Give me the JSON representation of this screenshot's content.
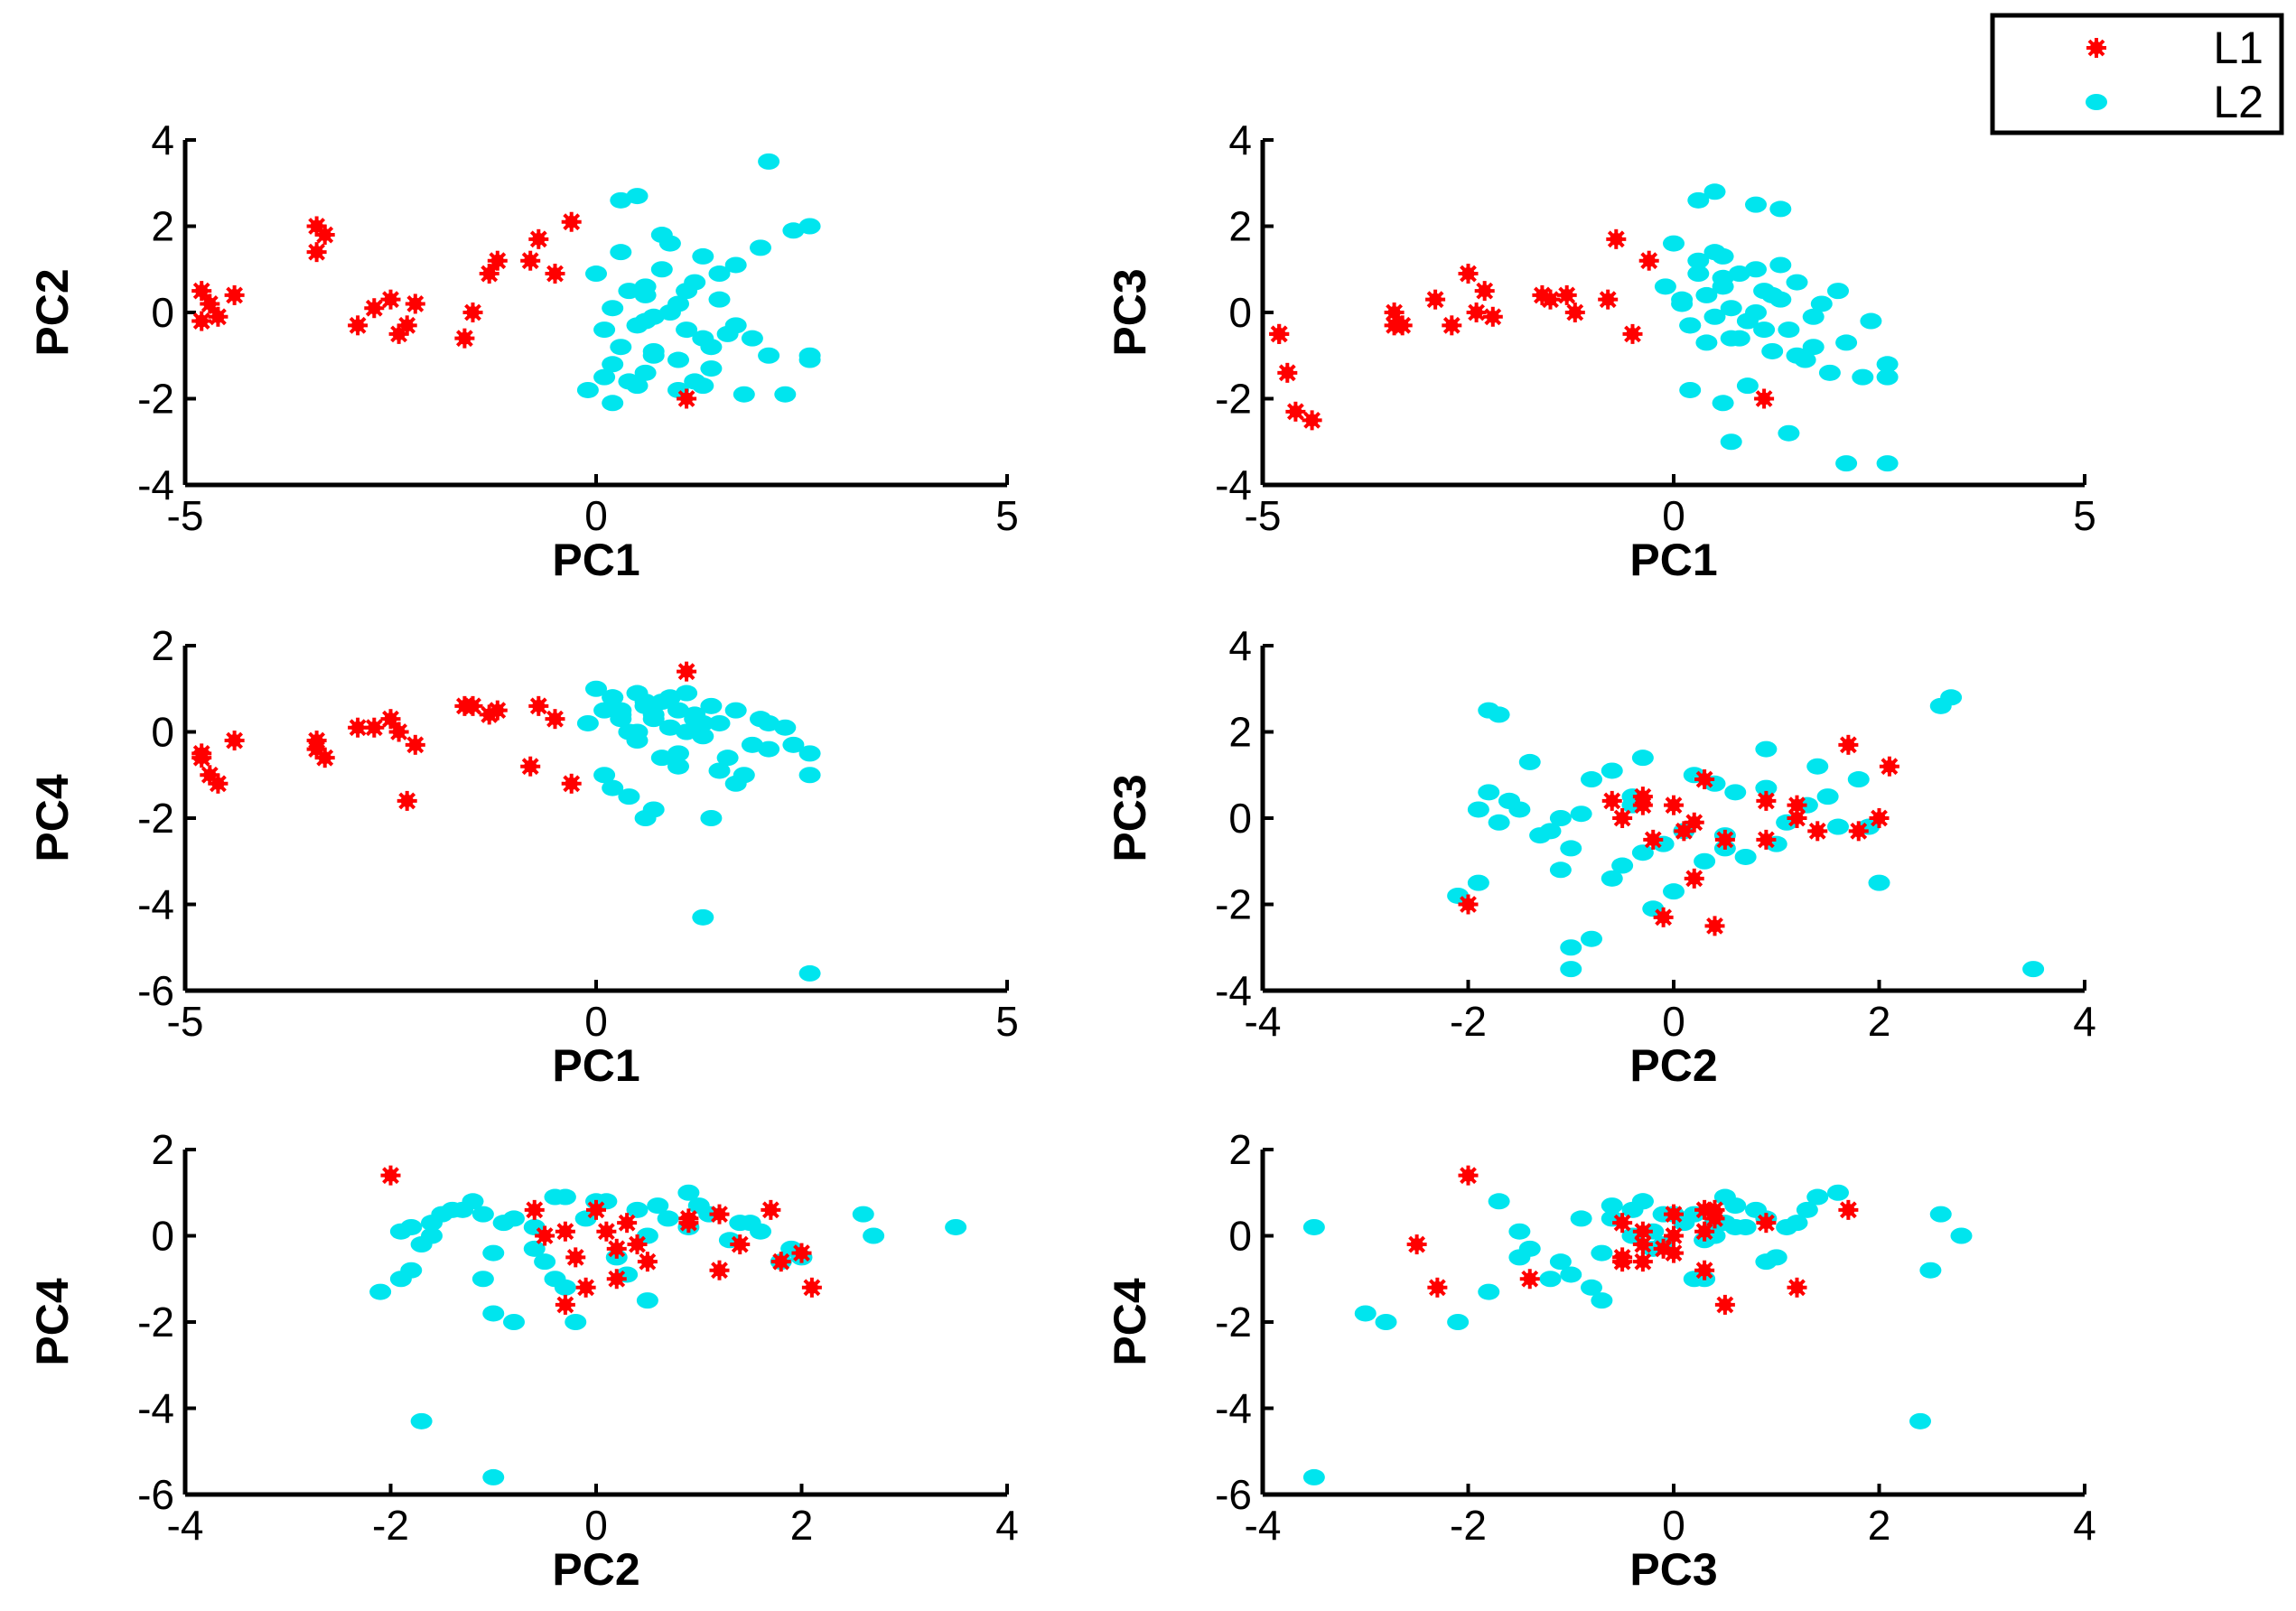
{
  "figure_title": "",
  "chart_data": {
    "type": "scatter",
    "legend": {
      "placement": "top-right",
      "entries": [
        {
          "name": "L1",
          "color": "#ff0000",
          "marker": "asterisk"
        },
        {
          "name": "L2",
          "color": "#00e5ee",
          "marker": "circle"
        }
      ]
    },
    "grid": false,
    "samples": {
      "L1": [
        {
          "PC1": -4.8,
          "PC2": 0.5,
          "PC3": -0.5,
          "PC4": -0.6
        },
        {
          "PC1": -4.7,
          "PC2": 0.2,
          "PC3": -1.4,
          "PC4": -1.0
        },
        {
          "PC1": -4.8,
          "PC2": -0.2,
          "PC3": -0.5,
          "PC4": -0.5
        },
        {
          "PC1": -4.6,
          "PC2": -0.1,
          "PC3": -2.3,
          "PC4": -1.2
        },
        {
          "PC1": -4.4,
          "PC2": 0.4,
          "PC3": -2.5,
          "PC4": -0.2
        },
        {
          "PC1": -3.4,
          "PC2": 2.0,
          "PC3": 0.0,
          "PC4": -0.4
        },
        {
          "PC1": -3.3,
          "PC2": 1.8,
          "PC3": -0.3,
          "PC4": -0.6
        },
        {
          "PC1": -3.4,
          "PC2": 1.4,
          "PC3": -0.3,
          "PC4": -0.2
        },
        {
          "PC1": -2.9,
          "PC2": -0.3,
          "PC3": 0.3,
          "PC4": 0.1
        },
        {
          "PC1": -2.7,
          "PC2": 0.1,
          "PC3": -0.3,
          "PC4": 0.1
        },
        {
          "PC1": -2.5,
          "PC2": 0.3,
          "PC3": 0.9,
          "PC4": 0.3
        },
        {
          "PC1": -2.4,
          "PC2": -0.5,
          "PC3": 0.0,
          "PC4": 0.0
        },
        {
          "PC1": -2.3,
          "PC2": -0.3,
          "PC3": 0.5,
          "PC4": -1.6
        },
        {
          "PC1": -2.2,
          "PC2": 0.2,
          "PC3": -0.1,
          "PC4": -0.3
        },
        {
          "PC1": -1.6,
          "PC2": -0.6,
          "PC3": 0.4,
          "PC4": 0.6
        },
        {
          "PC1": -1.5,
          "PC2": 0.0,
          "PC3": 0.3,
          "PC4": 0.6
        },
        {
          "PC1": -1.2,
          "PC2": 1.2,
          "PC3": 0.0,
          "PC4": 0.5
        },
        {
          "PC1": -1.3,
          "PC2": 0.9,
          "PC3": 0.4,
          "PC4": 0.4
        },
        {
          "PC1": -0.7,
          "PC2": 1.7,
          "PC3": 1.7,
          "PC4": 0.6
        },
        {
          "PC1": -0.8,
          "PC2": 1.2,
          "PC3": 0.3,
          "PC4": -0.8
        },
        {
          "PC1": -0.5,
          "PC2": 0.9,
          "PC3": -0.5,
          "PC4": 0.3
        },
        {
          "PC1": -0.3,
          "PC2": 2.1,
          "PC3": 1.2,
          "PC4": -1.2
        },
        {
          "PC1": 1.1,
          "PC2": -2.0,
          "PC3": -2.0,
          "PC4": 1.4
        }
      ],
      "L2": [
        {
          "PC1": 0.1,
          "PC2": -1.5,
          "PC3": 0.2,
          "PC4": 0.5
        },
        {
          "PC1": -0.1,
          "PC2": -1.8,
          "PC3": 0.6,
          "PC4": 0.2
        },
        {
          "PC1": 0.2,
          "PC2": -1.2,
          "PC3": -0.3,
          "PC4": 0.8
        },
        {
          "PC1": 0.3,
          "PC2": -0.8,
          "PC3": 0.9,
          "PC4": 0.4
        },
        {
          "PC1": 0.4,
          "PC2": -1.6,
          "PC3": 0.4,
          "PC4": 0.0
        },
        {
          "PC1": 0.5,
          "PC2": -0.3,
          "PC3": 1.4,
          "PC4": 0.9
        },
        {
          "PC1": 0.6,
          "PC2": 0.4,
          "PC3": 0.8,
          "PC4": 0.6
        },
        {
          "PC1": 0.7,
          "PC2": -0.9,
          "PC3": 0.1,
          "PC4": 0.3
        },
        {
          "PC1": 0.8,
          "PC2": 1.0,
          "PC3": -0.6,
          "PC4": 0.7
        },
        {
          "PC1": 0.9,
          "PC2": 1.6,
          "PC3": -0.2,
          "PC4": 0.1
        },
        {
          "PC1": 1.0,
          "PC2": 0.2,
          "PC3": 1.0,
          "PC4": -0.5
        },
        {
          "PC1": 1.1,
          "PC2": -0.4,
          "PC3": 0.5,
          "PC4": 0.9
        },
        {
          "PC1": 1.2,
          "PC2": 0.7,
          "PC3": -0.9,
          "PC4": 0.4
        },
        {
          "PC1": 1.3,
          "PC2": 1.3,
          "PC3": 0.3,
          "PC4": -0.1
        },
        {
          "PC1": 1.4,
          "PC2": -1.3,
          "PC3": -0.4,
          "PC4": 0.6
        },
        {
          "PC1": 1.5,
          "PC2": 0.9,
          "PC3": 0.7,
          "PC4": 0.2
        },
        {
          "PC1": 1.6,
          "PC2": -0.5,
          "PC3": -1.1,
          "PC4": -0.6
        },
        {
          "PC1": 1.7,
          "PC2": 1.1,
          "PC3": -0.1,
          "PC4": 0.5
        },
        {
          "PC1": 1.8,
          "PC2": -1.9,
          "PC3": 0.2,
          "PC4": -1.0
        },
        {
          "PC1": 1.9,
          "PC2": -0.6,
          "PC3": -1.4,
          "PC4": -0.3
        },
        {
          "PC1": 2.0,
          "PC2": 1.5,
          "PC3": 0.5,
          "PC4": 0.3
        },
        {
          "PC1": 2.1,
          "PC2": -1.0,
          "PC3": -0.7,
          "PC4": -0.4
        },
        {
          "PC1": 0.0,
          "PC2": 0.9,
          "PC3": 1.6,
          "PC4": 1.0
        },
        {
          "PC1": 0.2,
          "PC2": 0.1,
          "PC3": -0.3,
          "PC4": 0.8
        },
        {
          "PC1": 0.3,
          "PC2": 1.4,
          "PC3": 1.2,
          "PC4": 0.3
        },
        {
          "PC1": 0.5,
          "PC2": -1.7,
          "PC3": -0.1,
          "PC4": -0.2
        },
        {
          "PC1": 0.6,
          "PC2": 0.6,
          "PC3": 0.6,
          "PC4": 0.7
        },
        {
          "PC1": 0.7,
          "PC2": -0.1,
          "PC3": -0.6,
          "PC4": 0.4
        },
        {
          "PC1": 0.8,
          "PC2": 1.8,
          "PC3": 0.9,
          "PC4": -0.6
        },
        {
          "PC1": 1.0,
          "PC2": -1.1,
          "PC3": 0.0,
          "PC4": 0.5
        },
        {
          "PC1": 1.1,
          "PC2": 0.5,
          "PC3": -0.4,
          "PC4": 0.0
        },
        {
          "PC1": 1.3,
          "PC2": -0.6,
          "PC3": 1.1,
          "PC4": 0.2
        },
        {
          "PC1": 1.5,
          "PC2": 0.3,
          "PC3": -1.0,
          "PC4": -0.9
        },
        {
          "PC1": 1.7,
          "PC2": -0.3,
          "PC3": -0.8,
          "PC4": -1.2
        },
        {
          "PC1": 0.1,
          "PC2": -0.4,
          "PC3": 0.3,
          "PC4": -1.0
        },
        {
          "PC1": 0.2,
          "PC2": -2.1,
          "PC3": -1.8,
          "PC4": -1.3
        },
        {
          "PC1": 0.4,
          "PC2": 0.5,
          "PC3": -0.7,
          "PC4": -1.5
        },
        {
          "PC1": 0.6,
          "PC2": -1.4,
          "PC3": 1.3,
          "PC4": 0.6
        },
        {
          "PC1": 0.9,
          "PC2": 0.0,
          "PC3": -1.7,
          "PC4": 0.8
        },
        {
          "PC1": 1.2,
          "PC2": -1.6,
          "PC3": 0.4,
          "PC4": 0.3
        },
        {
          "PC1": 2.3,
          "PC2": -1.9,
          "PC3": -1.5,
          "PC4": 0.1
        },
        {
          "PC1": 2.4,
          "PC2": 1.9,
          "PC3": -0.2,
          "PC4": -0.3
        },
        {
          "PC1": 2.6,
          "PC2": 2.0,
          "PC3": -1.5,
          "PC4": -0.5
        },
        {
          "PC1": 2.6,
          "PC2": -1.1,
          "PC3": -1.2,
          "PC4": -1.0
        },
        {
          "PC1": 2.1,
          "PC2": 3.5,
          "PC3": -3.5,
          "PC4": 0.2
        },
        {
          "PC1": 0.6,
          "PC2": -0.2,
          "PC3": -2.1,
          "PC4": -2.0
        },
        {
          "PC1": 0.7,
          "PC2": -1.0,
          "PC3": -3.0,
          "PC4": -1.8
        },
        {
          "PC1": 1.4,
          "PC2": -0.8,
          "PC3": -2.8,
          "PC4": -2.0
        },
        {
          "PC1": 0.3,
          "PC2": 2.6,
          "PC3": 2.6,
          "PC4": 0.5
        },
        {
          "PC1": 0.5,
          "PC2": 2.7,
          "PC3": 2.8,
          "PC4": 0.0
        },
        {
          "PC1": 1.0,
          "PC2": -1.8,
          "PC3": 2.5,
          "PC4": -0.8
        },
        {
          "PC1": 1.3,
          "PC2": -1.7,
          "PC3": 2.4,
          "PC4": -4.3
        },
        {
          "PC1": 2.6,
          "PC2": -1.0,
          "PC3": -3.5,
          "PC4": -5.6
        }
      ]
    },
    "subplots": [
      {
        "title": "",
        "x_var": "PC1",
        "y_var": "PC2",
        "xlabel": "PC1",
        "ylabel": "PC2",
        "xlim": [
          -5,
          5
        ],
        "ylim": [
          -4,
          4
        ],
        "xticks": [
          -5,
          0,
          5
        ],
        "yticks": [
          -4,
          -2,
          0,
          2,
          4
        ],
        "xtick_labels": [
          "-5",
          "0",
          "5"
        ],
        "ytick_labels": [
          "-4",
          "-2",
          "0",
          "2",
          "4"
        ]
      },
      {
        "title": "",
        "x_var": "PC1",
        "y_var": "PC3",
        "xlabel": "PC1",
        "ylabel": "PC3",
        "xlim": [
          -5,
          5
        ],
        "ylim": [
          -4,
          4
        ],
        "xticks": [
          -5,
          0,
          5
        ],
        "yticks": [
          -4,
          -2,
          0,
          2,
          4
        ],
        "xtick_labels": [
          "-5",
          "0",
          "5"
        ],
        "ytick_labels": [
          "-4",
          "-2",
          "0",
          "2",
          "4"
        ]
      },
      {
        "title": "",
        "x_var": "PC1",
        "y_var": "PC4",
        "xlabel": "PC1",
        "ylabel": "PC4",
        "xlim": [
          -5,
          5
        ],
        "ylim": [
          -6,
          2
        ],
        "xticks": [
          -5,
          0,
          5
        ],
        "yticks": [
          -6,
          -4,
          -2,
          0,
          2
        ],
        "xtick_labels": [
          "-5",
          "0",
          "5"
        ],
        "ytick_labels": [
          "-6",
          "-4",
          "-2",
          "0",
          "2"
        ]
      },
      {
        "title": "",
        "x_var": "PC2",
        "y_var": "PC3",
        "xlabel": "PC2",
        "ylabel": "PC3",
        "xlim": [
          -4,
          4
        ],
        "ylim": [
          -4,
          4
        ],
        "xticks": [
          -4,
          -2,
          0,
          2,
          4
        ],
        "yticks": [
          -4,
          -2,
          0,
          2,
          4
        ],
        "xtick_labels": [
          "-4",
          "-2",
          "0",
          "2",
          "4"
        ],
        "ytick_labels": [
          "-4",
          "-2",
          "0",
          "2",
          "4"
        ]
      },
      {
        "title": "",
        "x_var": "PC2",
        "y_var": "PC4",
        "xlabel": "PC2",
        "ylabel": "PC4",
        "xlim": [
          -4,
          4
        ],
        "ylim": [
          -6,
          2
        ],
        "xticks": [
          -4,
          -2,
          0,
          2,
          4
        ],
        "yticks": [
          -6,
          -4,
          -2,
          0,
          2
        ],
        "xtick_labels": [
          "-4",
          "-2",
          "0",
          "2",
          "4"
        ],
        "ytick_labels": [
          "-6",
          "-4",
          "-2",
          "0",
          "2"
        ]
      },
      {
        "title": "",
        "x_var": "PC3",
        "y_var": "PC4",
        "xlabel": "PC3",
        "ylabel": "PC4",
        "xlim": [
          -4,
          4
        ],
        "ylim": [
          -6,
          2
        ],
        "xticks": [
          -4,
          -2,
          0,
          2,
          4
        ],
        "yticks": [
          -6,
          -4,
          -2,
          0,
          2
        ],
        "xtick_labels": [
          "-4",
          "-2",
          "0",
          "2",
          "4"
        ],
        "ytick_labels": [
          "-6",
          "-4",
          "-2",
          "0",
          "2"
        ]
      }
    ]
  }
}
